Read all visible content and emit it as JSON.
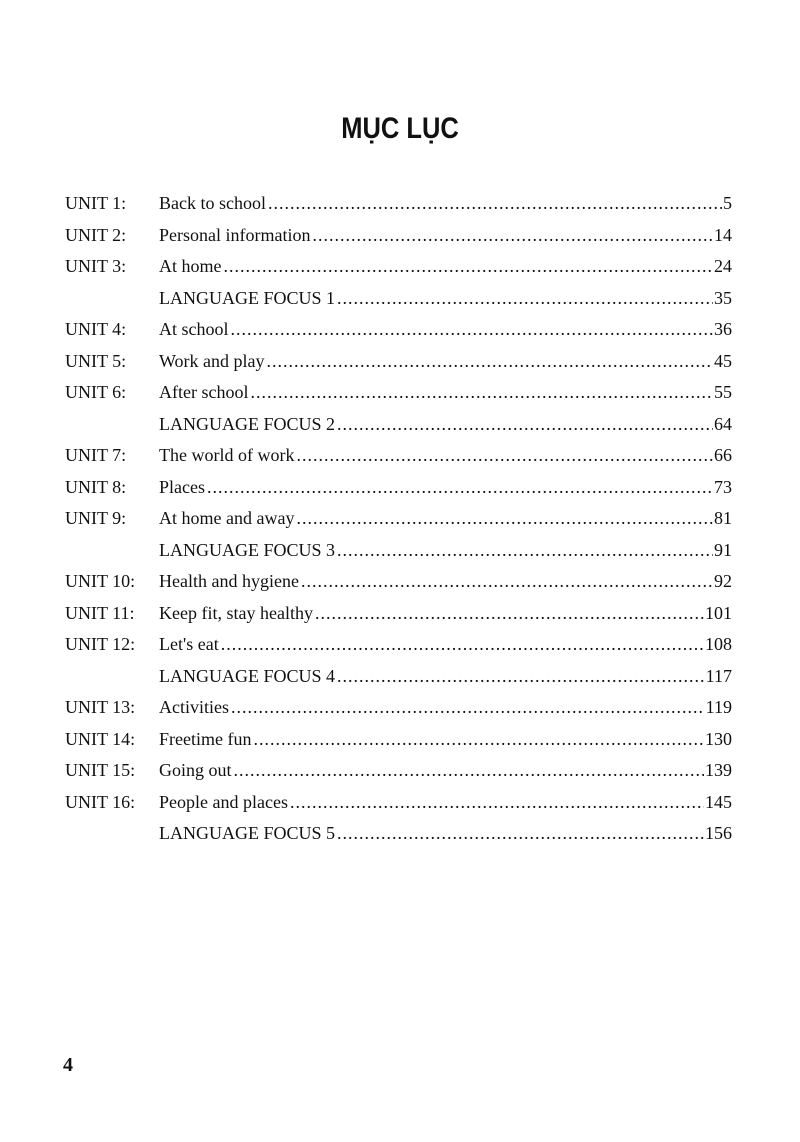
{
  "title": "MỤC LỤC",
  "entries": [
    {
      "unit": "UNIT 1:",
      "name": "Back to school",
      "page": "5"
    },
    {
      "unit": "UNIT 2:",
      "name": "Personal information",
      "page": "14"
    },
    {
      "unit": "UNIT 3:",
      "name": "At home",
      "page": "24"
    },
    {
      "unit": "",
      "name": "LANGUAGE FOCUS 1",
      "page": "35"
    },
    {
      "unit": "UNIT 4:",
      "name": "At school",
      "page": "36"
    },
    {
      "unit": "UNIT 5:",
      "name": "Work and play",
      "page": "45"
    },
    {
      "unit": "UNIT 6:",
      "name": "After school",
      "page": "55"
    },
    {
      "unit": "",
      "name": "LANGUAGE FOCUS 2",
      "page": "64"
    },
    {
      "unit": "UNIT 7:",
      "name": "The world of work",
      "page": "66"
    },
    {
      "unit": "UNIT 8:",
      "name": "Places",
      "page": "73"
    },
    {
      "unit": "UNIT 9:",
      "name": "At home and away",
      "page": "81"
    },
    {
      "unit": "",
      "name": "LANGUAGE FOCUS 3",
      "page": "91"
    },
    {
      "unit": "UNIT 10:",
      "name": "Health and hygiene",
      "page": "92"
    },
    {
      "unit": "UNIT 11:",
      "name": "Keep fit, stay healthy",
      "page": "101"
    },
    {
      "unit": "UNIT 12:",
      "name": "Let's eat",
      "page": "108"
    },
    {
      "unit": "",
      "name": "LANGUAGE FOCUS 4",
      "page": "117"
    },
    {
      "unit": "UNIT 13:",
      "name": "Activities",
      "page": "119"
    },
    {
      "unit": "UNIT 14:",
      "name": "Freetime fun",
      "page": "130"
    },
    {
      "unit": "UNIT 15:",
      "name": "Going out",
      "page": "139"
    },
    {
      "unit": "UNIT 16:",
      "name": "People and places",
      "page": "145"
    },
    {
      "unit": "",
      "name": "LANGUAGE FOCUS 5",
      "page": "156"
    }
  ],
  "page_number": "4"
}
